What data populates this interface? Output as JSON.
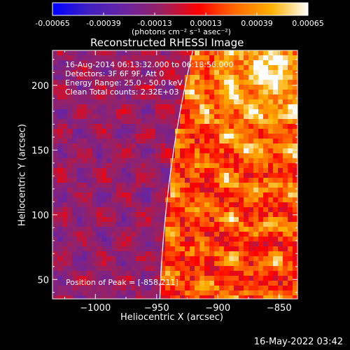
{
  "colorbar": {
    "ticks": [
      "-0.00065",
      "-0.00039",
      "-0.00013",
      "0.00013",
      "0.00039",
      "0.00065"
    ],
    "min": -0.00065,
    "max": 0.00065,
    "units": "(photons cm⁻² s⁻¹ asec⁻²)",
    "palette": [
      "#0000ff",
      "#4020c0",
      "#6a24a0",
      "#9a2060",
      "#ff0000",
      "#ff6a00",
      "#ffb000",
      "#ffffff"
    ]
  },
  "chart_data": {
    "type": "heatmap",
    "title": "Reconstructed RHESSI Image",
    "xlabel": "Heliocentric X (arcsec)",
    "ylabel": "Heliocentric Y (arcsec)",
    "xlim": [
      -1035,
      -835
    ],
    "ylim": [
      35,
      227
    ],
    "xticks": [
      -1000,
      -950,
      -900,
      -850
    ],
    "yticks": [
      50,
      100,
      150,
      200
    ],
    "grid": false,
    "annotations": {
      "time_range": "16-Aug-2014 06:13:32.000 to 06:18:56.000",
      "detectors": "Detectors: 3F 6F 9F, Att 0",
      "energy": "Energy Range: 25.0 - 50.0 keV",
      "method": "Clean     Total counts: 2.32E+03",
      "peak": "Position of Peak = [-858,211]"
    },
    "peak": [
      -858,
      211
    ],
    "solar_limb_radius_arcsec": 948
  },
  "footer": {
    "timestamp": "16-May-2022 03:42"
  }
}
